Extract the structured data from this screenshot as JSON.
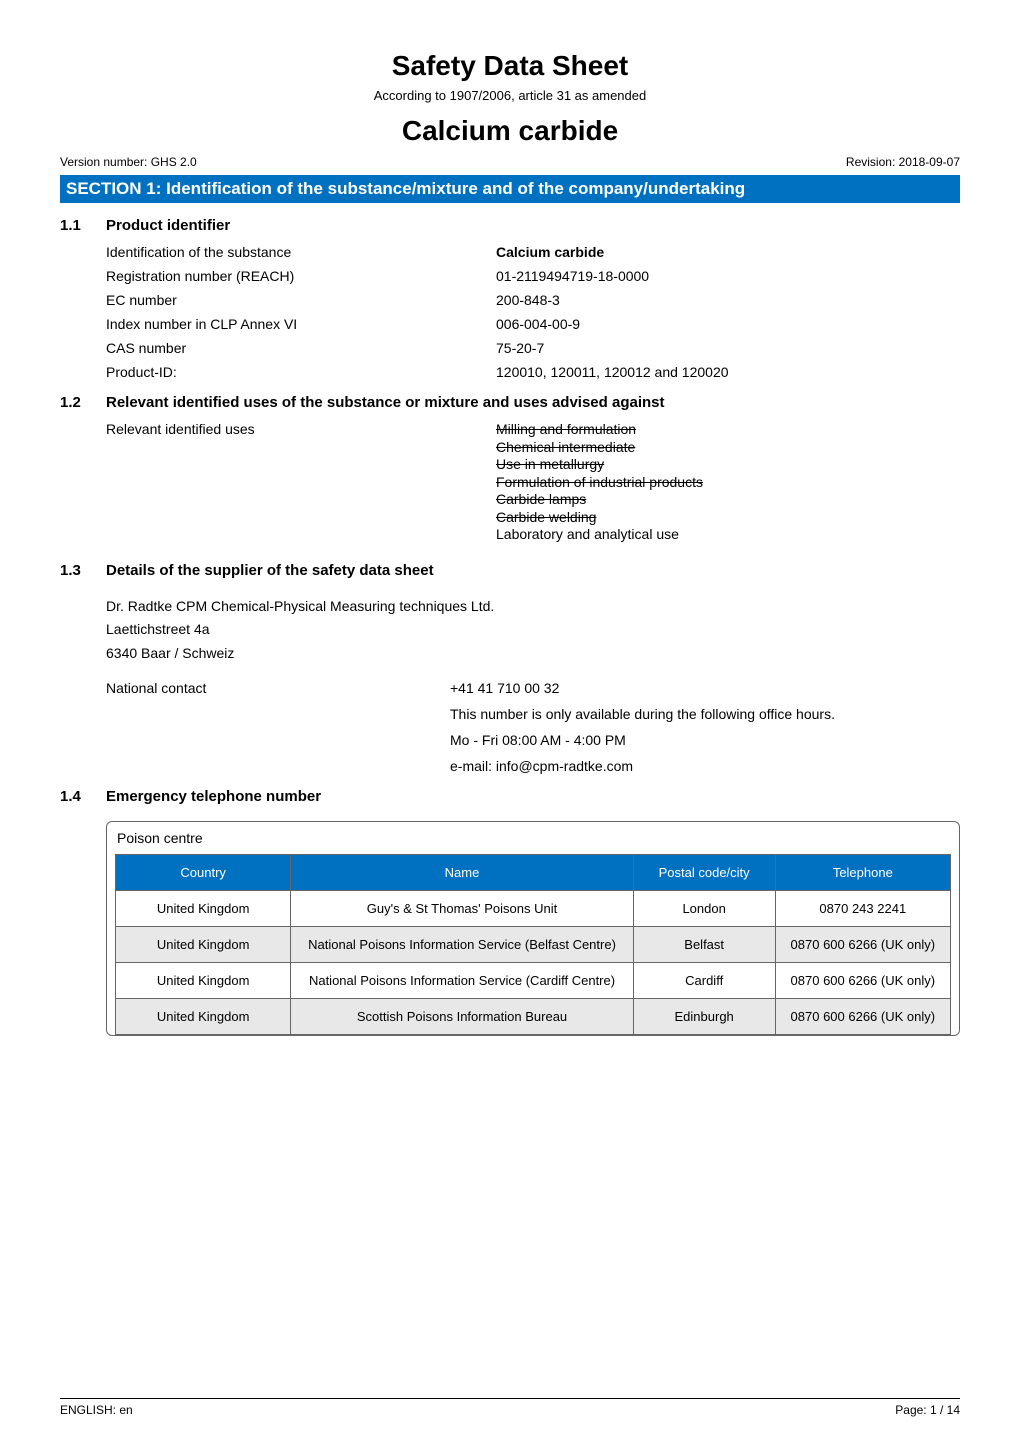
{
  "colors": {
    "banner_bg": "#0070c0",
    "table_header_bg": "#0070c0",
    "row_alt_bg": "#e8e8e8",
    "border": "#666666"
  },
  "doc": {
    "title": "Safety Data Sheet",
    "subtitle": "According to 1907/2006, article 31 as amended",
    "product": "Calcium carbide",
    "version_label": "Version number: GHS 2.0",
    "revision_label": "Revision: 2018-09-07"
  },
  "section1": {
    "banner": "SECTION 1: Identification of the substance/mixture and of the  company/undertaking",
    "s11": {
      "num": "1.1",
      "heading": "Product identifier",
      "rows": [
        {
          "k": "Identification of the substance",
          "v": "Calcium carbide",
          "bold": true
        },
        {
          "k": "Registration number (REACH)",
          "v": "01-2119494719-18-0000"
        },
        {
          "k": "EC number",
          "v": "200-848-3"
        },
        {
          "k": "Index number in CLP Annex VI",
          "v": "006-004-00-9"
        },
        {
          "k": "CAS number",
          "v": "75-20-7"
        },
        {
          "k": "Product-ID:",
          "v": "120010, 120011, 120012 and 120020"
        }
      ]
    },
    "s12": {
      "num": "1.2",
      "heading": "Relevant identified uses of the substance or mixture and uses advised against",
      "uses_label": "Relevant identified uses",
      "uses": [
        {
          "t": "Milling and formulation",
          "strike": true
        },
        {
          "t": "Chemical intermediate",
          "strike": true
        },
        {
          "t": "Use in metallurgy",
          "strike": true
        },
        {
          "t": "Formulation of industrial products",
          "strike": true
        },
        {
          "t": "Carbide lamps",
          "strike": true
        },
        {
          "t": "Carbide welding",
          "strike": true
        },
        {
          "t": "Laboratory and analytical use",
          "strike": false
        }
      ]
    },
    "s13": {
      "num": "1.3",
      "heading": "Details of the supplier of the safety data sheet",
      "supplier_lines": [
        "Dr. Radtke CPM Chemical-Physical Measuring techniques Ltd.",
        "Laettichstreet 4a",
        "6340 Baar / Schweiz"
      ],
      "contact_label": "National contact",
      "contact_lines": [
        "+41 41 710 00 32",
        "This number is only available during the following office hours.",
        "Mo - Fri  08:00 AM - 4:00 PM",
        "e-mail: info@cpm-radtke.com"
      ]
    },
    "s14": {
      "num": "1.4",
      "heading": "Emergency telephone number",
      "table_caption": "Poison centre",
      "columns": [
        "Country",
        "Name",
        "Postal code/city",
        "Telephone"
      ],
      "col_widths": [
        "21%",
        "41%",
        "17%",
        "21%"
      ],
      "rows": [
        [
          "United Kingdom",
          "Guy's & St Thomas' Poisons Unit",
          "London",
          "0870 243 2241"
        ],
        [
          "United Kingdom",
          "National Poisons Information Service (Belfast Centre)",
          "Belfast",
          "0870 600 6266 (UK only)"
        ],
        [
          "United Kingdom",
          "National Poisons Information Service (Cardiff Centre)",
          "Cardiff",
          "0870 600 6266 (UK only)"
        ],
        [
          "United Kingdom",
          "Scottish Poisons Information Bureau",
          "Edinburgh",
          "0870 600 6266 (UK only)"
        ]
      ]
    }
  },
  "footer": {
    "left": "ENGLISH: en",
    "right": "Page: 1 / 14"
  }
}
